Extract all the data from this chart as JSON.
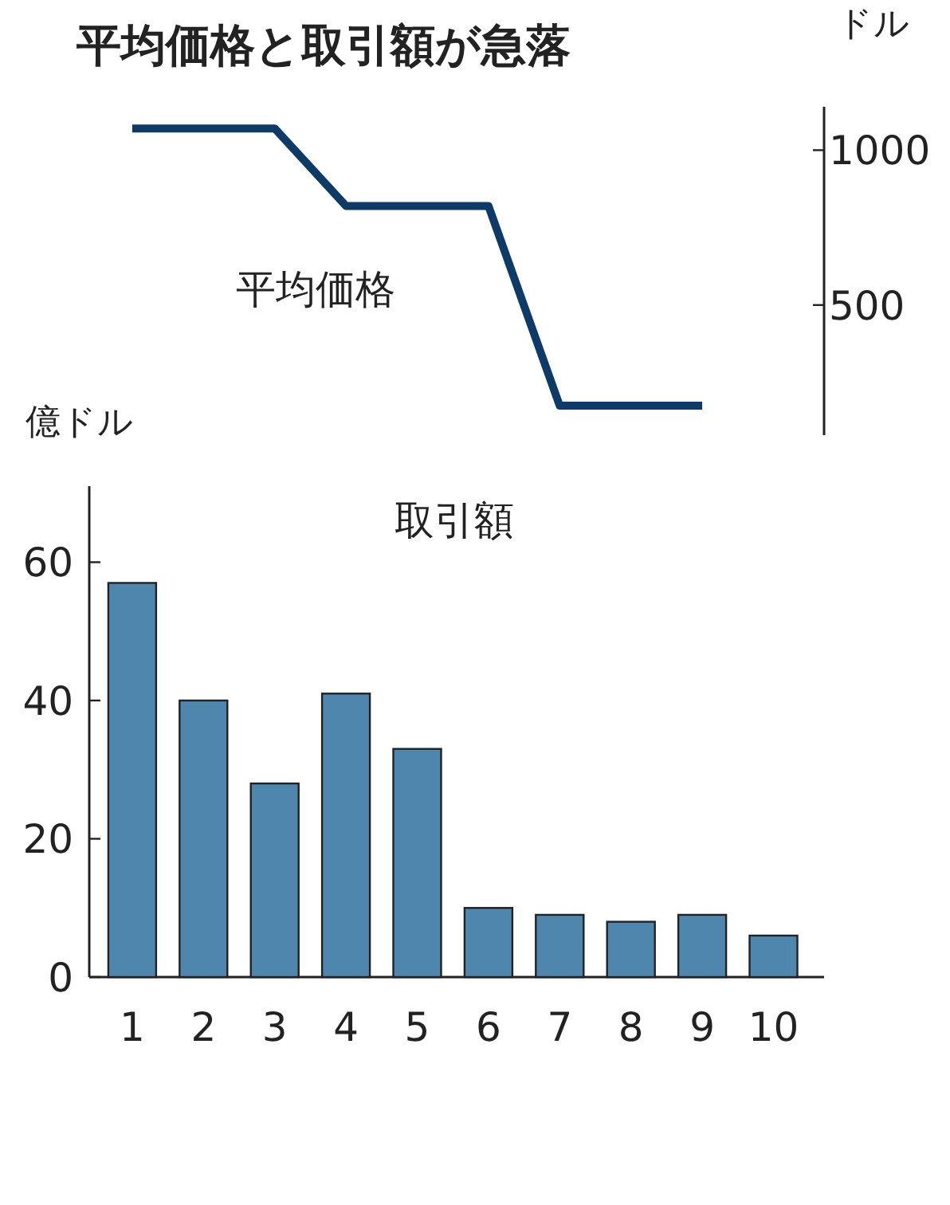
{
  "chart_data": [
    {
      "type": "line",
      "title": "平均価格と取引額が急落",
      "categories": [
        null,
        null,
        null,
        null,
        null,
        null,
        null,
        null,
        null,
        null
      ],
      "tick_labels": "y",
      "ylabel": "ドル",
      "ylim": [
        80,
        1140
      ],
      "yticks": [
        500,
        1000
      ],
      "series": [
        {
          "name": "平均価格",
          "color": "#0d3a66",
          "values": [
            1070,
            1070,
            1070,
            820,
            820,
            820,
            175,
            175,
            175,
            null
          ]
        }
      ]
    },
    {
      "type": "bar",
      "categories": [
        "1",
        "2",
        "3",
        "4",
        "5",
        "6",
        "7",
        "8",
        "9",
        "10"
      ],
      "ylabel": "億ドル",
      "ylim": [
        0,
        71
      ],
      "yticks": [
        0,
        20,
        40,
        60
      ],
      "series": [
        {
          "name": "取引額",
          "color": "#4f86ae",
          "values": [
            57,
            40,
            28,
            41,
            33,
            10,
            9,
            8,
            9,
            6
          ]
        }
      ]
    }
  ]
}
